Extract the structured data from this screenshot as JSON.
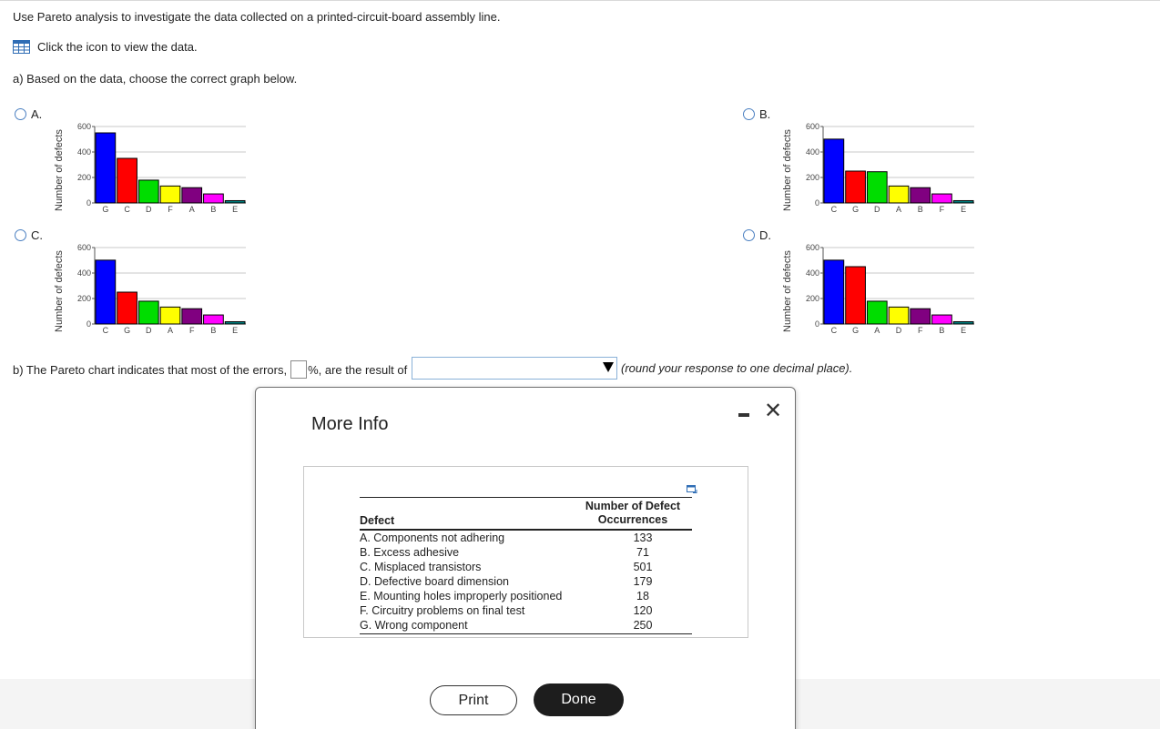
{
  "prompt": "Use Pareto analysis to investigate the data collected on a printed-circuit-board assembly line.",
  "data_link": {
    "label": "Click the icon to view the data.",
    "icon": "table-grid-icon"
  },
  "part_a": {
    "label": "a) Based on the data, choose the correct graph below."
  },
  "options": [
    {
      "letter": "A.",
      "chart_data": {
        "type": "bar",
        "ylabel": "Number of defects",
        "categories": [
          "G",
          "C",
          "D",
          "F",
          "A",
          "B",
          "E"
        ],
        "values": [
          550,
          350,
          179,
          133,
          120,
          71,
          18
        ],
        "colors": [
          "#0000ff",
          "#ff0000",
          "#00dd00",
          "#ffff00",
          "#800080",
          "#ff00ff",
          "#008080"
        ],
        "ylim": [
          0,
          600
        ],
        "yticks": [
          "0",
          "200",
          "400",
          "600"
        ],
        "grid": true
      }
    },
    {
      "letter": "B.",
      "chart_data": {
        "type": "bar",
        "ylabel": "Number of defects",
        "categories": [
          "C",
          "G",
          "D",
          "A",
          "B",
          "F",
          "E"
        ],
        "values": [
          501,
          250,
          245,
          133,
          120,
          71,
          18
        ],
        "colors": [
          "#0000ff",
          "#ff0000",
          "#00dd00",
          "#ffff00",
          "#800080",
          "#ff00ff",
          "#008080"
        ],
        "ylim": [
          0,
          600
        ],
        "yticks": [
          "0",
          "200",
          "400",
          "600"
        ],
        "grid": true
      }
    },
    {
      "letter": "C.",
      "chart_data": {
        "type": "bar",
        "ylabel": "Number of defects",
        "categories": [
          "C",
          "G",
          "D",
          "A",
          "F",
          "B",
          "E"
        ],
        "values": [
          501,
          250,
          179,
          133,
          120,
          71,
          18
        ],
        "colors": [
          "#0000ff",
          "#ff0000",
          "#00dd00",
          "#ffff00",
          "#800080",
          "#ff00ff",
          "#008080"
        ],
        "ylim": [
          0,
          600
        ],
        "yticks": [
          "0",
          "200",
          "400",
          "600"
        ],
        "grid": true
      }
    },
    {
      "letter": "D.",
      "chart_data": {
        "type": "bar",
        "ylabel": "Number of defects",
        "categories": [
          "C",
          "G",
          "A",
          "D",
          "F",
          "B",
          "E"
        ],
        "values": [
          501,
          450,
          179,
          133,
          120,
          71,
          18
        ],
        "colors": [
          "#0000ff",
          "#ff0000",
          "#00dd00",
          "#ffff00",
          "#800080",
          "#ff00ff",
          "#008080"
        ],
        "ylim": [
          0,
          600
        ],
        "yticks": [
          "0",
          "200",
          "400",
          "600"
        ],
        "grid": true
      }
    }
  ],
  "part_b": {
    "prefix": "b) The Pareto chart indicates that most of the errors,",
    "pct_value": "",
    "middle": "%, are the result of",
    "select_value": "",
    "note": "(round your response to one decimal place)."
  },
  "modal": {
    "title": "More Info",
    "table": {
      "col1_header": "Defect",
      "col2_header_line1": "Number of Defect",
      "col2_header_line2": "Occurrences",
      "rows": [
        {
          "defect": "A. Components not adhering",
          "count": "133"
        },
        {
          "defect": "B. Excess adhesive",
          "count": "71"
        },
        {
          "defect": "C. Misplaced transistors",
          "count": "501"
        },
        {
          "defect": "D. Defective board dimension",
          "count": "179"
        },
        {
          "defect": "E. Mounting holes improperly positioned",
          "count": "18"
        },
        {
          "defect": "F. Circuitry problems on final test",
          "count": "120"
        },
        {
          "defect": "G. Wrong component",
          "count": "250"
        }
      ]
    },
    "print_label": "Print",
    "done_label": "Done"
  }
}
